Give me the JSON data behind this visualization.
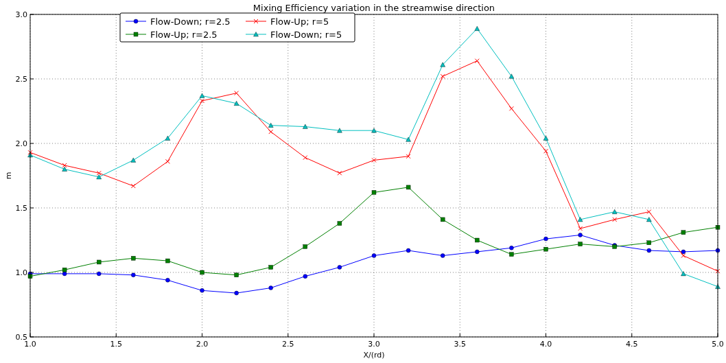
{
  "chart_data": {
    "type": "line",
    "title": "Mixing Efficiency variation in the streamwise direction",
    "xlabel": "X/(rd)",
    "ylabel": "m",
    "x": [
      1.0,
      1.2,
      1.4,
      1.6,
      1.8,
      2.0,
      2.2,
      2.4,
      2.6,
      2.8,
      3.0,
      3.2,
      3.4,
      3.6,
      3.8,
      4.0,
      4.2,
      4.4,
      4.6,
      4.8,
      5.0
    ],
    "xlim": [
      1.0,
      5.0
    ],
    "xticks": [
      {
        "value": 1,
        "label": "1.0"
      },
      {
        "value": 1.5,
        "label": "1.5"
      },
      {
        "value": 2,
        "label": "2.0"
      },
      {
        "value": 2.5,
        "label": "2.5"
      },
      {
        "value": 3,
        "label": "3.0"
      },
      {
        "value": 3.5,
        "label": "3.5"
      },
      {
        "value": 4,
        "label": "4.0"
      },
      {
        "value": 4.5,
        "label": "4.5"
      },
      {
        "value": 5,
        "label": "5.0"
      }
    ],
    "ylim": [
      0.5,
      3.0
    ],
    "yticks": [
      {
        "value": 0.5,
        "label": "0.5"
      },
      {
        "value": 1,
        "label": "1.0"
      },
      {
        "value": 1.5,
        "label": "1.5"
      },
      {
        "value": 2,
        "label": "2.0"
      },
      {
        "value": 2.5,
        "label": "2.5"
      },
      {
        "value": 3,
        "label": "3.0"
      }
    ],
    "grid": true,
    "legend": "top left",
    "line_style": "solid",
    "series": [
      {
        "name": "Flow-Down; r=2.5",
        "color": "#0000ff",
        "marker": "circle",
        "values": [
          0.99,
          0.99,
          0.99,
          0.98,
          0.94,
          0.86,
          0.84,
          0.88,
          0.97,
          1.04,
          1.13,
          1.17,
          1.13,
          1.16,
          1.19,
          1.26,
          1.29,
          1.21,
          1.17,
          1.16,
          1.17
        ]
      },
      {
        "name": "Flow-Up; r=2.5",
        "color": "#008000",
        "marker": "square",
        "values": [
          0.97,
          1.02,
          1.08,
          1.11,
          1.09,
          1.0,
          0.98,
          1.04,
          1.2,
          1.38,
          1.62,
          1.66,
          1.41,
          1.25,
          1.14,
          1.18,
          1.22,
          1.2,
          1.23,
          1.31,
          1.35
        ]
      },
      {
        "name": "Flow-Up; r=5",
        "color": "#ff0000",
        "marker": "cross",
        "values": [
          1.93,
          1.83,
          1.77,
          1.67,
          1.86,
          2.33,
          2.39,
          2.09,
          1.89,
          1.77,
          1.87,
          1.9,
          2.52,
          2.64,
          2.27,
          1.94,
          1.34,
          1.41,
          1.47,
          1.13,
          1.01
        ]
      },
      {
        "name": "Flow-Down; r=5",
        "color": "#00bfbf",
        "marker": "triangle",
        "values": [
          1.91,
          1.8,
          1.74,
          1.87,
          2.04,
          2.37,
          2.31,
          2.14,
          2.13,
          2.1,
          2.1,
          2.03,
          2.61,
          2.89,
          2.52,
          2.04,
          1.41,
          1.47,
          1.41,
          0.99,
          0.89
        ]
      }
    ]
  }
}
